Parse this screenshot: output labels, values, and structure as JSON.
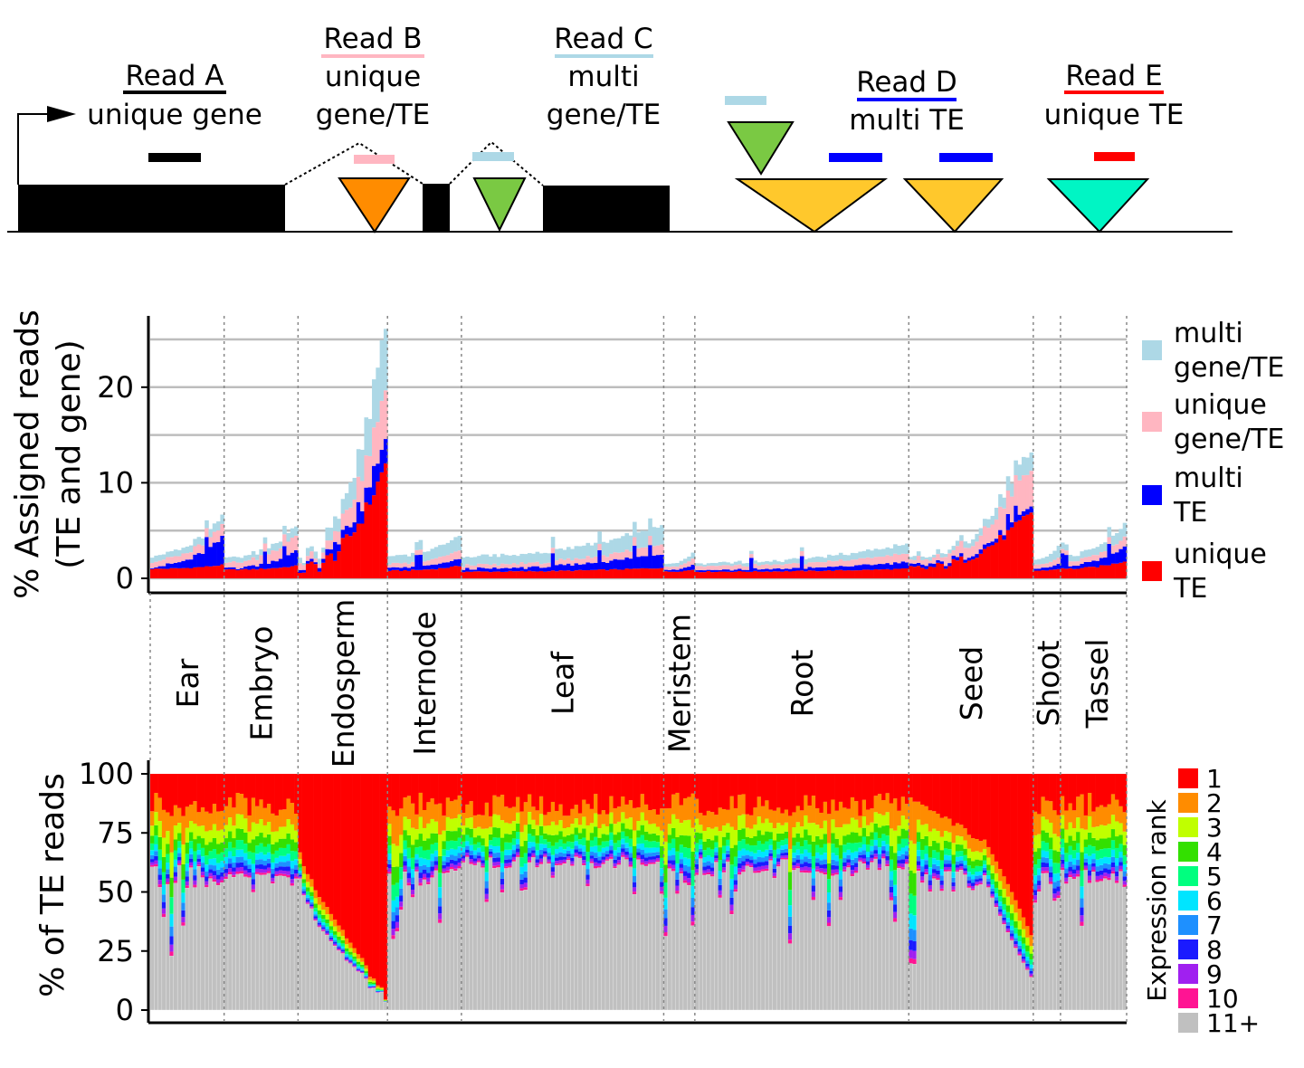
{
  "schematic": {
    "reads": [
      {
        "id": "A",
        "title": "Read A",
        "lines": [
          "unique gene"
        ],
        "color": "#000000"
      },
      {
        "id": "B",
        "title": "Read B",
        "lines": [
          "unique",
          "gene/TE"
        ],
        "color": "#ffb6c1"
      },
      {
        "id": "C",
        "title": "Read C",
        "lines": [
          "multi",
          "gene/TE"
        ],
        "color": "#add8e6"
      },
      {
        "id": "D",
        "title": "Read D",
        "lines": [
          "multi TE"
        ],
        "color": "#0000ff"
      },
      {
        "id": "E",
        "title": "Read E",
        "lines": [
          "unique TE"
        ],
        "color": "#ff0000"
      }
    ],
    "te_colors": [
      "#ff8c00",
      "#7ac943",
      "#ffc82c",
      "#00f5c4"
    ]
  },
  "chart_data": [
    {
      "type": "bar",
      "stacked": true,
      "ylabel": [
        "% Assigned reads",
        "(TE and gene)"
      ],
      "yticks": [
        0,
        10,
        20
      ],
      "ylim": [
        0,
        27
      ],
      "grid": true,
      "legend_position": "right",
      "series": [
        {
          "name": "unique TE",
          "label_lines": [
            "unique",
            "TE"
          ],
          "color": "#ff0000"
        },
        {
          "name": "multi TE",
          "label_lines": [
            "multi",
            "TE"
          ],
          "color": "#0000ff"
        },
        {
          "name": "unique gene/TE",
          "label_lines": [
            "unique",
            "gene/TE"
          ],
          "color": "#ffb6c1"
        },
        {
          "name": "multi gene/TE",
          "label_lines": [
            "multi",
            "gene/TE"
          ],
          "color": "#add8e6"
        }
      ],
      "groups": [
        {
          "name": "Ear",
          "n": 19,
          "values": {
            "uniqueTE": [
              1.0,
              1.4
            ],
            "multiTE": [
              0.3,
              2.8
            ],
            "uniqueGeneTE": [
              0.6,
              1.3
            ],
            "multiGeneTE": [
              0.6,
              1.0
            ]
          }
        },
        {
          "name": "Embryo",
          "n": 19,
          "values": {
            "uniqueTE": [
              0.9,
              1.3
            ],
            "multiTE": [
              0.2,
              1.5
            ],
            "uniqueGeneTE": [
              0.6,
              1.6
            ],
            "multiGeneTE": [
              0.5,
              1.0
            ]
          }
        },
        {
          "name": "Endosperm",
          "n": 23,
          "values": {
            "uniqueTE": [
              1.0,
              12.0
            ],
            "multiTE": [
              0.3,
              2.4
            ],
            "uniqueGeneTE": [
              0.6,
              5.2
            ],
            "multiGeneTE": [
              0.5,
              6.5
            ]
          }
        },
        {
          "name": "Internode",
          "n": 19,
          "values": {
            "uniqueTE": [
              0.8,
              1.3
            ],
            "multiTE": [
              0.3,
              0.7
            ],
            "uniqueGeneTE": [
              0.4,
              0.9
            ],
            "multiGeneTE": [
              0.8,
              1.6
            ]
          }
        },
        {
          "name": "Leaf",
          "n": 52,
          "values": {
            "uniqueTE": [
              0.7,
              1.1
            ],
            "multiTE": [
              0.3,
              1.5
            ],
            "uniqueGeneTE": [
              0.4,
              1.0
            ],
            "multiGeneTE": [
              0.9,
              2.0
            ]
          }
        },
        {
          "name": "Meristem",
          "n": 8,
          "values": {
            "uniqueTE": [
              0.7,
              0.9
            ],
            "multiTE": [
              0.2,
              0.5
            ],
            "uniqueGeneTE": [
              0.3,
              0.6
            ],
            "multiGeneTE": [
              0.3,
              0.6
            ]
          }
        },
        {
          "name": "Root",
          "n": 55,
          "values": {
            "uniqueTE": [
              0.7,
              1.0
            ],
            "multiTE": [
              0.2,
              0.7
            ],
            "uniqueGeneTE": [
              0.4,
              0.9
            ],
            "multiGeneTE": [
              0.3,
              1.0
            ]
          }
        },
        {
          "name": "Seed",
          "n": 32,
          "values": {
            "uniqueTE": [
              1.0,
              7.0
            ],
            "multiTE": [
              0.3,
              0.6
            ],
            "uniqueGeneTE": [
              0.5,
              4.0
            ],
            "multiGeneTE": [
              0.3,
              2.0
            ]
          }
        },
        {
          "name": "Shoot",
          "n": 7,
          "values": {
            "uniqueTE": [
              0.8,
              1.0
            ],
            "multiTE": [
              0.2,
              0.5
            ],
            "uniqueGeneTE": [
              0.4,
              0.6
            ],
            "multiGeneTE": [
              0.5,
              1.2
            ]
          }
        },
        {
          "name": "Tassel",
          "n": 17,
          "values": {
            "uniqueTE": [
              1.0,
              1.8
            ],
            "multiTE": [
              0.3,
              1.6
            ],
            "uniqueGeneTE": [
              0.5,
              1.0
            ],
            "multiGeneTE": [
              0.6,
              1.4
            ]
          }
        }
      ]
    },
    {
      "type": "bar",
      "stacked": true,
      "ylabel": "% of TE reads",
      "yticks": [
        0,
        25,
        50,
        75,
        100
      ],
      "ylim": [
        0,
        100
      ],
      "legend_title": "Expression rank",
      "legend_position": "right",
      "series": [
        {
          "name": "1",
          "color": "#ff0000"
        },
        {
          "name": "2",
          "color": "#ff8c00"
        },
        {
          "name": "3",
          "color": "#c0ff00"
        },
        {
          "name": "4",
          "color": "#33e000"
        },
        {
          "name": "5",
          "color": "#00ff7f"
        },
        {
          "name": "6",
          "color": "#00e5ff"
        },
        {
          "name": "7",
          "color": "#1e90ff"
        },
        {
          "name": "8",
          "color": "#1a1aff"
        },
        {
          "name": "9",
          "color": "#a020f0"
        },
        {
          "name": "10",
          "color": "#ff1493"
        },
        {
          "name": "11+",
          "color": "#c0c0c0"
        }
      ],
      "groups": [
        {
          "name": "Ear",
          "n": 19,
          "rest_range": [
            18,
            62
          ]
        },
        {
          "name": "Embryo",
          "n": 19,
          "rest_range": [
            48,
            58
          ]
        },
        {
          "name": "Endosperm",
          "n": 23,
          "rest_range": [
            4,
            55
          ]
        },
        {
          "name": "Internode",
          "n": 19,
          "rest_range": [
            30,
            60
          ]
        },
        {
          "name": "Leaf",
          "n": 52,
          "rest_range": [
            45,
            65
          ]
        },
        {
          "name": "Meristem",
          "n": 8,
          "rest_range": [
            16,
            60
          ]
        },
        {
          "name": "Root",
          "n": 55,
          "rest_range": [
            28,
            65
          ]
        },
        {
          "name": "Seed",
          "n": 32,
          "rest_range": [
            14,
            60
          ]
        },
        {
          "name": "Shoot",
          "n": 7,
          "rest_range": [
            45,
            60
          ]
        },
        {
          "name": "Tassel",
          "n": 17,
          "rest_range": [
            27,
            60
          ]
        }
      ]
    }
  ]
}
